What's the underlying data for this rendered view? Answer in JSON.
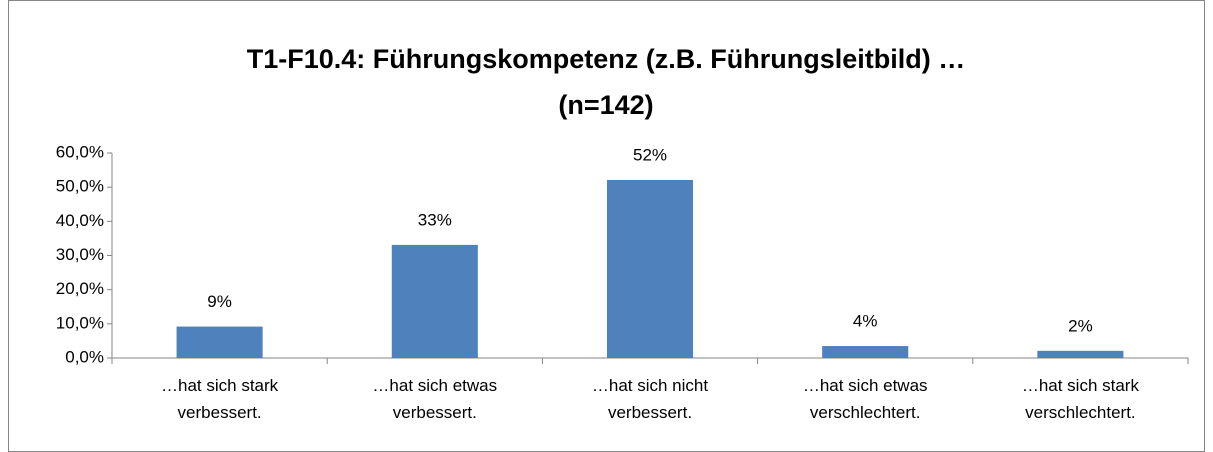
{
  "chart_data": {
    "type": "bar",
    "title": "T1-F10.4: Führungskompetenz (z.B. Führungsleitbild) … (n=142)",
    "categories": [
      "…hat sich stark verbessert.",
      "…hat sich etwas verbessert.",
      "…hat sich nicht verbessert.",
      "…hat sich etwas verschlechtert.",
      "…hat sich stark verschlechtert."
    ],
    "values": [
      9.2,
      33.1,
      52.1,
      3.5,
      2.1
    ],
    "value_labels": [
      "9%",
      "33%",
      "52%",
      "4%",
      "2%"
    ],
    "color": "#4f81bd",
    "ylim": [
      0,
      60
    ],
    "yticks": [
      {
        "value": 0,
        "label": "0,0%"
      },
      {
        "value": 10,
        "label": "10,0%"
      },
      {
        "value": 20,
        "label": "20,0%"
      },
      {
        "value": 30,
        "label": "30,0%"
      },
      {
        "value": 40,
        "label": "40,0%"
      },
      {
        "value": 50,
        "label": "50,0%"
      },
      {
        "value": 60,
        "label": "60,0%"
      }
    ],
    "grid": false
  }
}
